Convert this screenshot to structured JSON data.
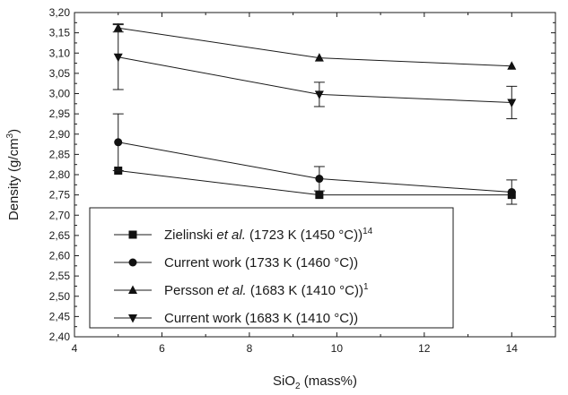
{
  "chart_data": {
    "type": "line",
    "title": "",
    "xlabel": {
      "main": "SiO",
      "sub": "2",
      "rest": " (mass%)"
    },
    "ylabel": {
      "main": "Density (g/cm",
      "sup": "3",
      "rest": ")"
    },
    "xlim": [
      4,
      15
    ],
    "ylim": [
      2.4,
      3.2
    ],
    "x_ticks": [
      "4",
      "6",
      "8",
      "10",
      "12",
      "14"
    ],
    "y_ticks": [
      "2,40",
      "2,45",
      "2,50",
      "2,55",
      "2,60",
      "2,65",
      "2,70",
      "2,75",
      "2,80",
      "2,85",
      "2,90",
      "2,95",
      "3,00",
      "3,05",
      "3,10",
      "3,15",
      "3,20"
    ],
    "grid": false,
    "legend_position": "lower-left",
    "series": [
      {
        "name": "Zielinski et al. (1723 K (1450 °C))14",
        "legend": {
          "pre": "Zielinski ",
          "italic": "et al.",
          "post": " (1723 K (1450 °C))",
          "sup": "14"
        },
        "marker": "square",
        "x": [
          5,
          9.6,
          14
        ],
        "y": [
          2.81,
          2.75,
          2.75
        ]
      },
      {
        "name": "Current work (1733 K (1460 °C))",
        "legend": {
          "pre": "Current work (1733 K (1460 °C))",
          "italic": "",
          "post": "",
          "sup": ""
        },
        "marker": "circle",
        "x": [
          5,
          9.6,
          14
        ],
        "y": [
          2.88,
          2.79,
          2.757
        ],
        "err": [
          0.07,
          0.03,
          0.03
        ]
      },
      {
        "name": "Persson et al. (1683 K (1410 °C))1",
        "legend": {
          "pre": "Persson ",
          "italic": "et al.",
          "post": " (1683 K (1410 °C))",
          "sup": "1"
        },
        "marker": "triangle-up",
        "x": [
          5,
          9.6,
          14
        ],
        "y": [
          3.162,
          3.088,
          3.068
        ],
        "err": [
          0.01,
          0,
          0
        ]
      },
      {
        "name": "Current work (1683 K (1410 °C))",
        "legend": {
          "pre": "Current work (1683 K (1410 °C))",
          "italic": "",
          "post": "",
          "sup": ""
        },
        "marker": "triangle-down",
        "x": [
          5,
          9.6,
          14
        ],
        "y": [
          3.09,
          2.998,
          2.978
        ],
        "err": [
          0.08,
          0.03,
          0.04
        ]
      }
    ]
  }
}
